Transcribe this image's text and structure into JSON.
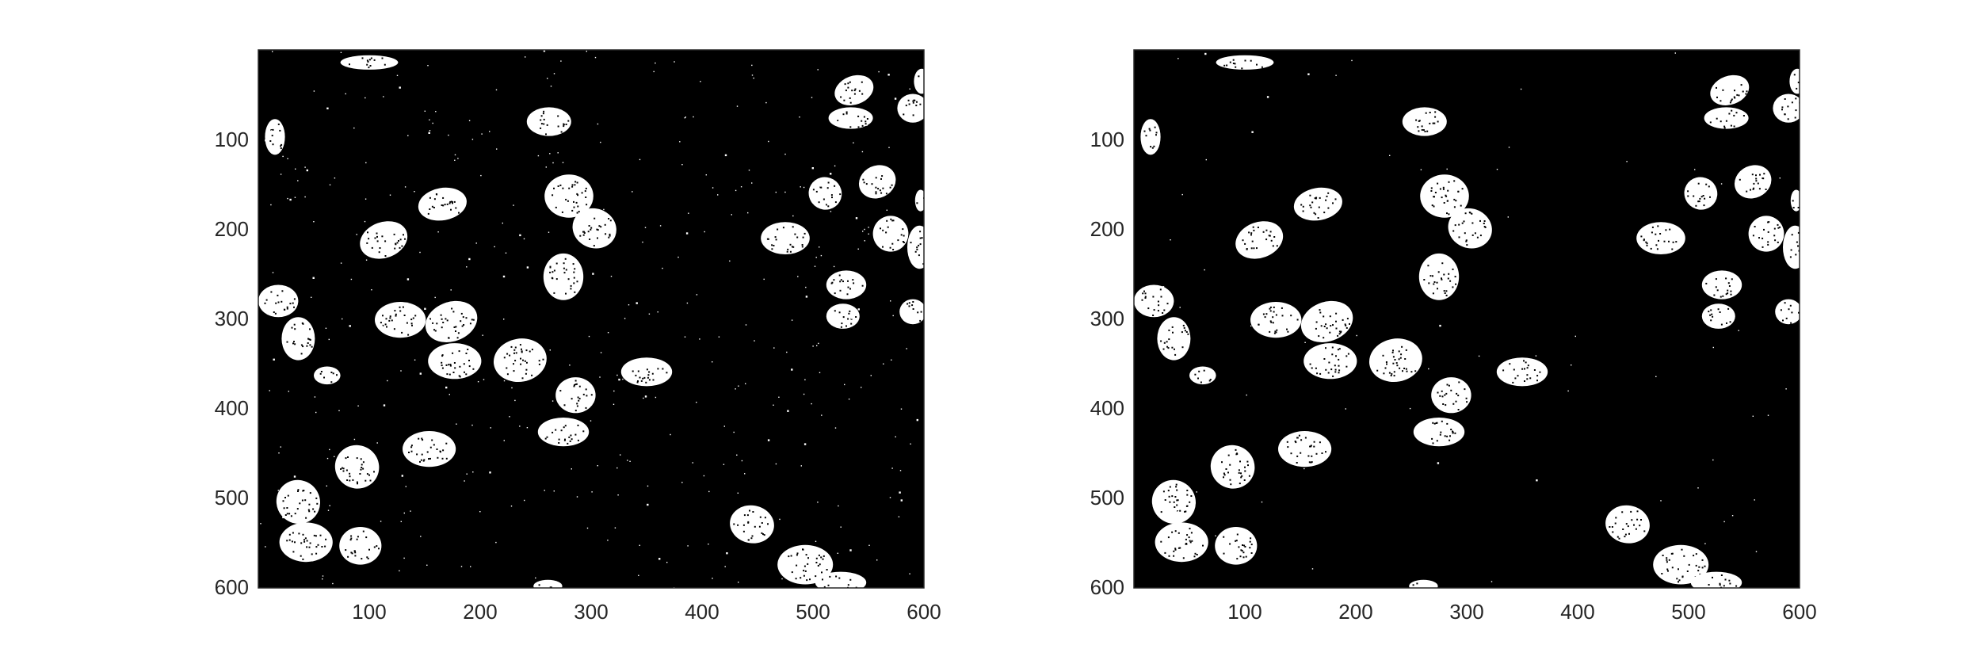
{
  "figure": {
    "background": "#ffffff",
    "image_foreground": "#ffffff",
    "image_background": "#000000",
    "axis_color": "#262626"
  },
  "panels": [
    {
      "name": "left-binary-image",
      "x_ticks": [
        "100",
        "200",
        "300",
        "400",
        "500",
        "600"
      ],
      "y_ticks": [
        "100",
        "200",
        "300",
        "400",
        "500",
        "600"
      ],
      "noise_level": 0.9,
      "nuclei": [
        [
          100,
          14,
          26,
          8,
          0
        ],
        [
          15,
          97,
          9,
          20,
          0
        ],
        [
          262,
          80,
          20,
          16,
          0
        ],
        [
          537,
          45,
          18,
          16,
          -20
        ],
        [
          534,
          76,
          20,
          12,
          0
        ],
        [
          590,
          65,
          14,
          16,
          0
        ],
        [
          598,
          35,
          7,
          14,
          0
        ],
        [
          280,
          163,
          22,
          24,
          0
        ],
        [
          166,
          172,
          22,
          18,
          -10
        ],
        [
          113,
          212,
          22,
          20,
          -20
        ],
        [
          303,
          199,
          20,
          22,
          20
        ],
        [
          475,
          210,
          22,
          18,
          0
        ],
        [
          511,
          160,
          15,
          18,
          30
        ],
        [
          558,
          147,
          17,
          18,
          -25
        ],
        [
          570,
          205,
          16,
          20,
          0
        ],
        [
          596,
          220,
          11,
          24,
          0
        ],
        [
          597,
          168,
          5,
          12,
          0
        ],
        [
          275,
          253,
          18,
          26,
          0
        ],
        [
          530,
          262,
          18,
          16,
          0
        ],
        [
          527,
          297,
          15,
          14,
          0
        ],
        [
          590,
          292,
          12,
          14,
          0
        ],
        [
          18,
          280,
          18,
          18,
          0
        ],
        [
          36,
          322,
          15,
          24,
          0
        ],
        [
          128,
          301,
          23,
          20,
          0
        ],
        [
          174,
          303,
          24,
          22,
          -20
        ],
        [
          177,
          347,
          24,
          20,
          0
        ],
        [
          236,
          346,
          24,
          24,
          -10
        ],
        [
          286,
          385,
          18,
          20,
          0
        ],
        [
          275,
          426,
          23,
          16,
          0
        ],
        [
          350,
          359,
          23,
          16,
          0
        ],
        [
          62,
          363,
          12,
          10,
          0
        ],
        [
          89,
          465,
          20,
          24,
          30
        ],
        [
          154,
          445,
          24,
          20,
          0
        ],
        [
          36,
          504,
          20,
          24,
          45
        ],
        [
          43,
          549,
          24,
          22,
          0
        ],
        [
          92,
          553,
          19,
          21,
          0
        ],
        [
          445,
          529,
          20,
          21,
          10
        ],
        [
          493,
          574,
          25,
          22,
          0
        ],
        [
          525,
          594,
          23,
          12,
          0
        ],
        [
          261,
          598,
          13,
          7,
          0
        ]
      ]
    },
    {
      "name": "right-binary-image",
      "x_ticks": [
        "100",
        "200",
        "300",
        "400",
        "500",
        "600"
      ],
      "y_ticks": [
        "100",
        "200",
        "300",
        "400",
        "500",
        "600"
      ],
      "noise_level": 0.15,
      "nuclei": [
        [
          100,
          14,
          26,
          8,
          0
        ],
        [
          15,
          97,
          9,
          20,
          0
        ],
        [
          262,
          80,
          20,
          16,
          0
        ],
        [
          537,
          45,
          18,
          16,
          -20
        ],
        [
          534,
          76,
          20,
          12,
          0
        ],
        [
          590,
          65,
          14,
          16,
          0
        ],
        [
          598,
          35,
          7,
          14,
          0
        ],
        [
          280,
          163,
          22,
          24,
          0
        ],
        [
          166,
          172,
          22,
          18,
          -10
        ],
        [
          113,
          212,
          22,
          20,
          -20
        ],
        [
          303,
          199,
          20,
          22,
          20
        ],
        [
          475,
          210,
          22,
          18,
          0
        ],
        [
          511,
          160,
          15,
          18,
          30
        ],
        [
          558,
          147,
          17,
          18,
          -25
        ],
        [
          570,
          205,
          16,
          20,
          0
        ],
        [
          596,
          220,
          11,
          24,
          0
        ],
        [
          597,
          168,
          5,
          12,
          0
        ],
        [
          275,
          253,
          18,
          26,
          0
        ],
        [
          530,
          262,
          18,
          16,
          0
        ],
        [
          527,
          297,
          15,
          14,
          0
        ],
        [
          590,
          292,
          12,
          14,
          0
        ],
        [
          18,
          280,
          18,
          18,
          0
        ],
        [
          36,
          322,
          15,
          24,
          0
        ],
        [
          128,
          301,
          23,
          20,
          0
        ],
        [
          174,
          303,
          24,
          22,
          -20
        ],
        [
          177,
          347,
          24,
          20,
          0
        ],
        [
          236,
          346,
          24,
          24,
          -10
        ],
        [
          286,
          385,
          18,
          20,
          0
        ],
        [
          275,
          426,
          23,
          16,
          0
        ],
        [
          350,
          359,
          23,
          16,
          0
        ],
        [
          62,
          363,
          12,
          10,
          0
        ],
        [
          89,
          465,
          20,
          24,
          30
        ],
        [
          154,
          445,
          24,
          20,
          0
        ],
        [
          36,
          504,
          20,
          24,
          45
        ],
        [
          43,
          549,
          24,
          22,
          0
        ],
        [
          92,
          553,
          19,
          21,
          0
        ],
        [
          445,
          529,
          20,
          21,
          10
        ],
        [
          493,
          574,
          25,
          22,
          0
        ],
        [
          525,
          594,
          23,
          12,
          0
        ],
        [
          261,
          598,
          13,
          7,
          0
        ]
      ]
    }
  ]
}
